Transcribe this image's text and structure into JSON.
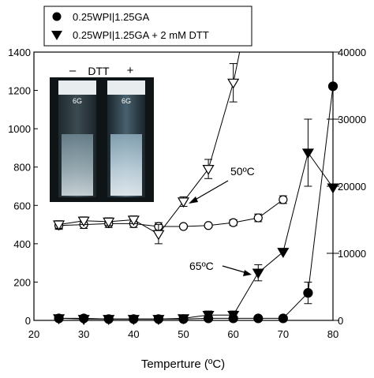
{
  "chart_data": {
    "type": "line",
    "xlabel": "Temperture (ºC)",
    "x_ticks": [
      20,
      30,
      40,
      50,
      60,
      70,
      80
    ],
    "xlim": [
      20,
      80
    ],
    "y_left_ticks": [
      0,
      200,
      400,
      600,
      800,
      1000,
      1200,
      1400
    ],
    "ylim_left": [
      0,
      1400
    ],
    "y_right_ticks": [
      0,
      10000,
      20000,
      30000,
      40000
    ],
    "ylim_right": [
      0,
      40000
    ],
    "legend": {
      "position": "top",
      "entries": [
        {
          "marker": "circle-filled",
          "label": "0.25WPI|1.25GA"
        },
        {
          "marker": "triangle-down-filled",
          "label": "0.25WPI|1.25GA + 2 mM DTT"
        }
      ]
    },
    "annotations": [
      {
        "text": "50ºC",
        "points_to": [
          50,
          620
        ]
      },
      {
        "text": "65ºC",
        "points_to": [
          65,
          245
        ]
      }
    ],
    "inset": {
      "minus_label": "–",
      "center_label": "DTT",
      "plus_label": "+",
      "vial_label": "6G"
    },
    "series": [
      {
        "name": "0.25WPI|1.25GA",
        "axis": "left",
        "marker": "circle-open",
        "x": [
          25,
          30,
          35,
          40,
          45,
          50,
          55,
          60,
          65,
          70
        ],
        "y": [
          495,
          500,
          505,
          505,
          490,
          490,
          495,
          510,
          535,
          630
        ],
        "err": [
          20,
          20,
          20,
          20,
          20,
          10,
          10,
          15,
          20,
          20
        ]
      },
      {
        "name": "0.25WPI|1.25GA + 2 mM DTT",
        "axis": "left",
        "marker": "triangle-down-open",
        "x": [
          25,
          30,
          35,
          40,
          45,
          50,
          55,
          60
        ],
        "y": [
          500,
          520,
          515,
          525,
          450,
          620,
          790,
          1240
        ],
        "err": [
          20,
          20,
          20,
          20,
          50,
          25,
          50,
          100
        ],
        "extends_to_top": true
      },
      {
        "name": "0.25WPI|1.25GA",
        "axis": "right",
        "marker": "circle-filled",
        "x": [
          25,
          30,
          35,
          40,
          45,
          50,
          55,
          60,
          65,
          70,
          75,
          80
        ],
        "y": [
          300,
          300,
          200,
          200,
          200,
          200,
          300,
          300,
          300,
          300,
          4100,
          34900
        ],
        "err": [
          0,
          0,
          0,
          0,
          0,
          0,
          0,
          0,
          0,
          0,
          1600,
          0
        ]
      },
      {
        "name": "0.25WPI|1.25GA + 2 mM DTT",
        "axis": "right",
        "marker": "triangle-down-filled",
        "x": [
          25,
          30,
          35,
          40,
          45,
          50,
          55,
          60,
          65,
          70,
          75,
          80
        ],
        "y": [
          300,
          200,
          200,
          200,
          200,
          300,
          800,
          800,
          7100,
          10200,
          25000,
          19800
        ],
        "err": [
          0,
          0,
          0,
          0,
          0,
          0,
          600,
          600,
          1200,
          0,
          5000,
          0
        ]
      }
    ]
  }
}
